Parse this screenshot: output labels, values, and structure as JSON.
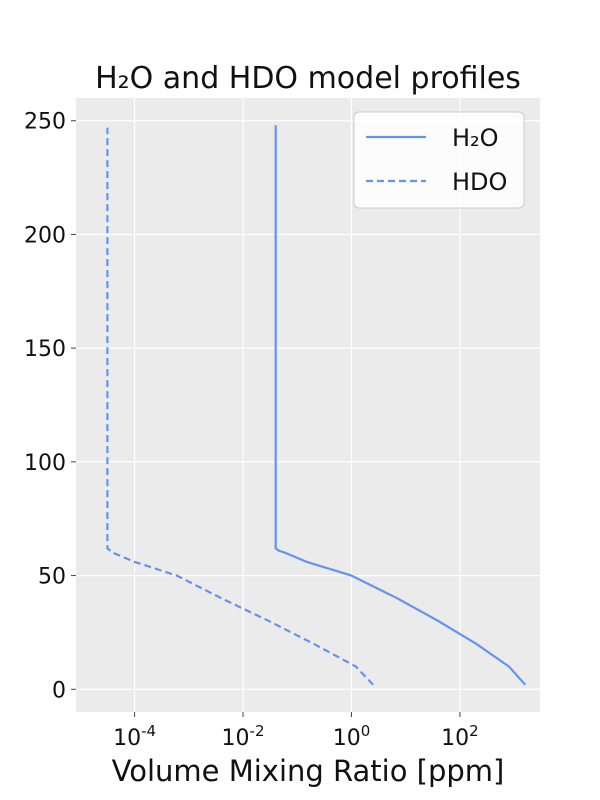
{
  "chart_data": {
    "type": "line",
    "title": "H₂O and HDO model profiles",
    "xlabel": "Volume Mixing Ratio [ppm]",
    "ylabel": "",
    "x_scale": "log",
    "xlim": [
      8.3e-06,
      3000
    ],
    "ylim": [
      -10,
      260
    ],
    "grid": true,
    "legend_position": "top-right",
    "x_ticks": [
      {
        "value": 0.0001,
        "base": "10",
        "exp": "-4"
      },
      {
        "value": 0.01,
        "base": "10",
        "exp": "-2"
      },
      {
        "value": 1,
        "base": "10",
        "exp": "0"
      },
      {
        "value": 100,
        "base": "10",
        "exp": "2"
      }
    ],
    "y_ticks": [
      {
        "value": 0,
        "label": "0"
      },
      {
        "value": 50,
        "label": "50"
      },
      {
        "value": 100,
        "label": "100"
      },
      {
        "value": 150,
        "label": "150"
      },
      {
        "value": 200,
        "label": "200"
      },
      {
        "value": 250,
        "label": "250"
      }
    ],
    "series": [
      {
        "name": "H₂O",
        "style": "solid",
        "color": "#6495ED",
        "points": [
          [
            1600,
            2
          ],
          [
            800,
            10
          ],
          [
            200,
            20
          ],
          [
            40,
            30
          ],
          [
            7,
            40
          ],
          [
            1,
            50
          ],
          [
            0.15,
            56
          ],
          [
            0.06,
            60
          ],
          [
            0.045,
            61
          ],
          [
            0.04,
            62
          ],
          [
            0.04,
            100
          ],
          [
            0.04,
            150
          ],
          [
            0.04,
            200
          ],
          [
            0.04,
            248
          ]
        ]
      },
      {
        "name": "HDO",
        "style": "dashed",
        "color": "#6495ED",
        "points": [
          [
            2.5,
            2
          ],
          [
            1.2,
            10
          ],
          [
            0.2,
            20
          ],
          [
            0.03,
            30
          ],
          [
            0.004,
            40
          ],
          [
            0.0006,
            50
          ],
          [
            0.0001,
            56
          ],
          [
            4e-05,
            60
          ],
          [
            3.15e-05,
            62
          ],
          [
            3.15e-05,
            100
          ],
          [
            3.15e-05,
            150
          ],
          [
            3.15e-05,
            200
          ],
          [
            3.15e-05,
            247
          ]
        ]
      }
    ]
  }
}
